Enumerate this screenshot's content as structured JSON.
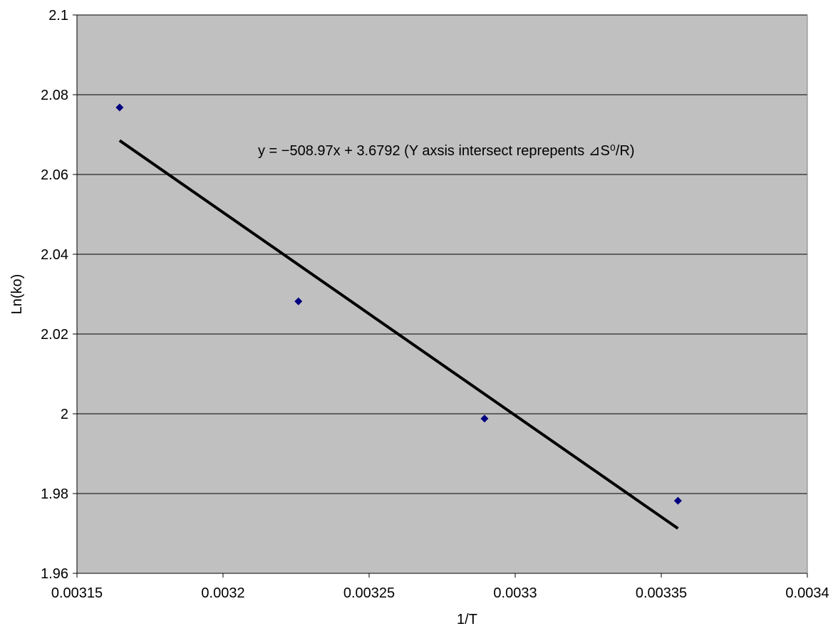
{
  "chart_data": {
    "type": "scatter",
    "title": "",
    "xlabel": "1/T",
    "ylabel": "Ln(ko)",
    "xlim": [
      0.00315,
      0.0034
    ],
    "ylim": [
      1.96,
      2.1
    ],
    "x_ticks": [
      0.00315,
      0.0032,
      0.00325,
      0.0033,
      0.00335,
      0.0034
    ],
    "x_tick_labels": [
      "0.00315",
      "0.0032",
      "0.00325",
      "0.0033",
      "0.00335",
      "0.0034"
    ],
    "y_ticks": [
      1.96,
      1.98,
      2.0,
      2.02,
      2.04,
      2.06,
      2.08,
      2.1
    ],
    "y_tick_labels": [
      "1.96",
      "1.98",
      "2",
      "2.02",
      "2.04",
      "2.06",
      "2.08",
      "2.1"
    ],
    "grid": "horizontal",
    "legend": "none",
    "series": [
      {
        "x": [
          0.0031646,
          0.0032258,
          0.0032895,
          0.0033557
        ],
        "y": [
          2.0768,
          2.0282,
          1.9988,
          1.9782
        ],
        "color": "#000080",
        "marker": "diamond"
      }
    ],
    "trendline": {
      "slope": -508.97,
      "intercept": 3.6792,
      "x_range": [
        0.0031646,
        0.0033557
      ],
      "color": "#000000"
    },
    "annotation": "y = −508.97x + 3.6792 (Y axsis intersect reprepents ⊿S⁰/R)",
    "colors": {
      "plot_background": "#c0c0c0",
      "page_background": "#ffffff",
      "gridline": "#000000",
      "marker": "#000080",
      "trendline": "#000000"
    }
  }
}
